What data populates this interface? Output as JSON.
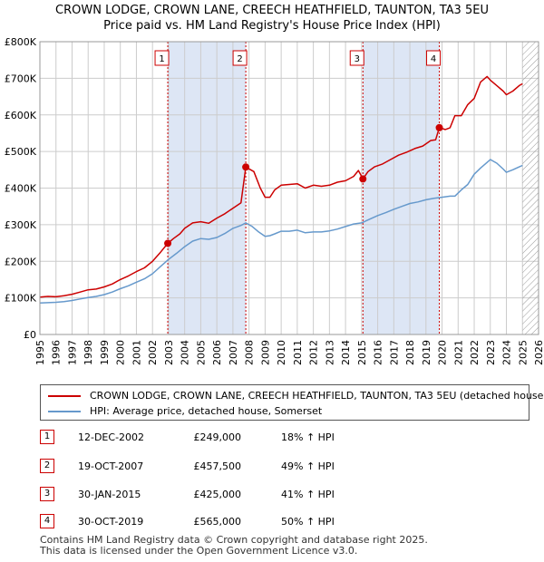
{
  "header": {
    "title": "CROWN LODGE, CROWN LANE, CREECH HEATHFIELD, TAUNTON, TA3 5EU",
    "subtitle": "Price paid vs. HM Land Registry's House Price Index (HPI)"
  },
  "chart_data": {
    "type": "line",
    "y_ticks": [
      {
        "value": 0,
        "label": "£0"
      },
      {
        "value": 100000,
        "label": "£100K"
      },
      {
        "value": 200000,
        "label": "£200K"
      },
      {
        "value": 300000,
        "label": "£300K"
      },
      {
        "value": 400000,
        "label": "£400K"
      },
      {
        "value": 500000,
        "label": "£500K"
      },
      {
        "value": 600000,
        "label": "£600K"
      },
      {
        "value": 700000,
        "label": "£700K"
      },
      {
        "value": 800000,
        "label": "£800K"
      }
    ],
    "x_ticks": [
      "1995",
      "1996",
      "1997",
      "1998",
      "1999",
      "2000",
      "2001",
      "2002",
      "2003",
      "2004",
      "2005",
      "2006",
      "2007",
      "2008",
      "2009",
      "2010",
      "2011",
      "2012",
      "2013",
      "2014",
      "2015",
      "2016",
      "2017",
      "2018",
      "2019",
      "2020",
      "2021",
      "2022",
      "2023",
      "2024",
      "2025",
      "2026"
    ],
    "xlim": [
      1995,
      2026
    ],
    "ylim": [
      0,
      800000
    ],
    "grid": true,
    "shaded_spans": [
      [
        2002.95,
        2007.8
      ],
      [
        2015.08,
        2019.83
      ]
    ],
    "future_hatch_from": 2025.0,
    "series": [
      {
        "name": "CROWN LODGE, CROWN LANE, CREECH HEATHFIELD, TAUNTON, TA3 5EU (detached house)",
        "color": "#cc0000",
        "x": [
          1995.0,
          1995.5,
          1996.0,
          1996.5,
          1997.0,
          1997.5,
          1998.0,
          1998.5,
          1999.0,
          1999.5,
          2000.0,
          2000.5,
          2001.0,
          2001.5,
          2002.0,
          2002.5,
          2002.95,
          2003.3,
          2003.7,
          2004.0,
          2004.5,
          2005.0,
          2005.5,
          2006.0,
          2006.5,
          2007.0,
          2007.5,
          2007.8,
          2007.9,
          2008.3,
          2008.7,
          2009.0,
          2009.3,
          2009.6,
          2010.0,
          2010.5,
          2011.0,
          2011.5,
          2012.0,
          2012.5,
          2013.0,
          2013.5,
          2014.0,
          2014.5,
          2014.8,
          2015.08,
          2015.4,
          2015.8,
          2016.3,
          2016.8,
          2017.3,
          2017.8,
          2018.3,
          2018.8,
          2019.3,
          2019.6,
          2019.83,
          2020.2,
          2020.5,
          2020.8,
          2021.2,
          2021.6,
          2022.0,
          2022.4,
          2022.8,
          2023.0,
          2023.4,
          2023.8,
          2024.0,
          2024.4,
          2024.8,
          2025.0
        ],
        "values": [
          102000,
          104000,
          103000,
          106000,
          110000,
          116000,
          122000,
          124000,
          130000,
          138000,
          150000,
          160000,
          172000,
          182000,
          200000,
          225000,
          249000,
          262000,
          275000,
          290000,
          305000,
          308000,
          304000,
          318000,
          330000,
          345000,
          360000,
          457500,
          455000,
          445000,
          400000,
          375000,
          375000,
          395000,
          408000,
          410000,
          412000,
          400000,
          408000,
          405000,
          408000,
          416000,
          420000,
          432000,
          448000,
          425000,
          445000,
          458000,
          466000,
          478000,
          490000,
          498000,
          508000,
          515000,
          530000,
          532000,
          565000,
          560000,
          565000,
          598000,
          598000,
          628000,
          645000,
          690000,
          705000,
          695000,
          680000,
          665000,
          655000,
          665000,
          680000,
          685000
        ]
      },
      {
        "name": "HPI: Average price, detached house, Somerset",
        "color": "#6699cc",
        "x": [
          1995.0,
          1995.5,
          1996.0,
          1996.5,
          1997.0,
          1997.5,
          1998.0,
          1998.5,
          1999.0,
          1999.5,
          2000.0,
          2000.5,
          2001.0,
          2001.5,
          2002.0,
          2002.5,
          2003.0,
          2003.5,
          2004.0,
          2004.5,
          2005.0,
          2005.5,
          2006.0,
          2006.5,
          2007.0,
          2007.5,
          2007.8,
          2008.2,
          2008.6,
          2009.0,
          2009.3,
          2009.6,
          2010.0,
          2010.5,
          2011.0,
          2011.5,
          2012.0,
          2012.5,
          2013.0,
          2013.5,
          2014.0,
          2014.5,
          2015.0,
          2015.5,
          2016.0,
          2016.5,
          2017.0,
          2017.5,
          2018.0,
          2018.5,
          2019.0,
          2019.5,
          2020.0,
          2020.5,
          2020.8,
          2021.2,
          2021.6,
          2022.0,
          2022.4,
          2022.8,
          2023.0,
          2023.4,
          2023.8,
          2024.0,
          2024.4,
          2024.8,
          2025.0
        ],
        "values": [
          86000,
          87000,
          88000,
          90000,
          93000,
          97000,
          101000,
          104000,
          109000,
          116000,
          125000,
          133000,
          143000,
          152000,
          166000,
          186000,
          205000,
          222000,
          240000,
          255000,
          262000,
          260000,
          265000,
          276000,
          290000,
          298000,
          305000,
          295000,
          280000,
          268000,
          270000,
          275000,
          282000,
          282000,
          285000,
          278000,
          280000,
          280000,
          283000,
          288000,
          295000,
          302000,
          305000,
          315000,
          325000,
          333000,
          342000,
          350000,
          358000,
          362000,
          368000,
          372000,
          375000,
          378000,
          378000,
          395000,
          410000,
          438000,
          455000,
          470000,
          478000,
          468000,
          452000,
          443000,
          450000,
          458000,
          462000
        ]
      }
    ],
    "markers": [
      {
        "label": "1",
        "x": 2002.95,
        "y": 249000
      },
      {
        "label": "2",
        "x": 2007.8,
        "y": 457500
      },
      {
        "label": "3",
        "x": 2015.08,
        "y": 425000
      },
      {
        "label": "4",
        "x": 2019.83,
        "y": 565000
      }
    ]
  },
  "legend": {
    "property": "CROWN LODGE, CROWN LANE, CREECH HEATHFIELD, TAUNTON, TA3 5EU (detached house)",
    "hpi": "HPI: Average price, detached house, Somerset"
  },
  "transactions": [
    {
      "num": "1",
      "date": "12-DEC-2002",
      "price": "£249,000",
      "hpi": "18% ↑ HPI"
    },
    {
      "num": "2",
      "date": "19-OCT-2007",
      "price": "£457,500",
      "hpi": "49% ↑ HPI"
    },
    {
      "num": "3",
      "date": "30-JAN-2015",
      "price": "£425,000",
      "hpi": "41% ↑ HPI"
    },
    {
      "num": "4",
      "date": "30-OCT-2019",
      "price": "£565,000",
      "hpi": "50% ↑ HPI"
    }
  ],
  "footer": {
    "line1": "Contains HM Land Registry data © Crown copyright and database right 2025.",
    "line2": "This data is licensed under the Open Government Licence v3.0."
  },
  "colors": {
    "property_line": "#cc0000",
    "hpi_line": "#6699cc",
    "shade": "#dde6f5",
    "grid": "#cccccc"
  }
}
